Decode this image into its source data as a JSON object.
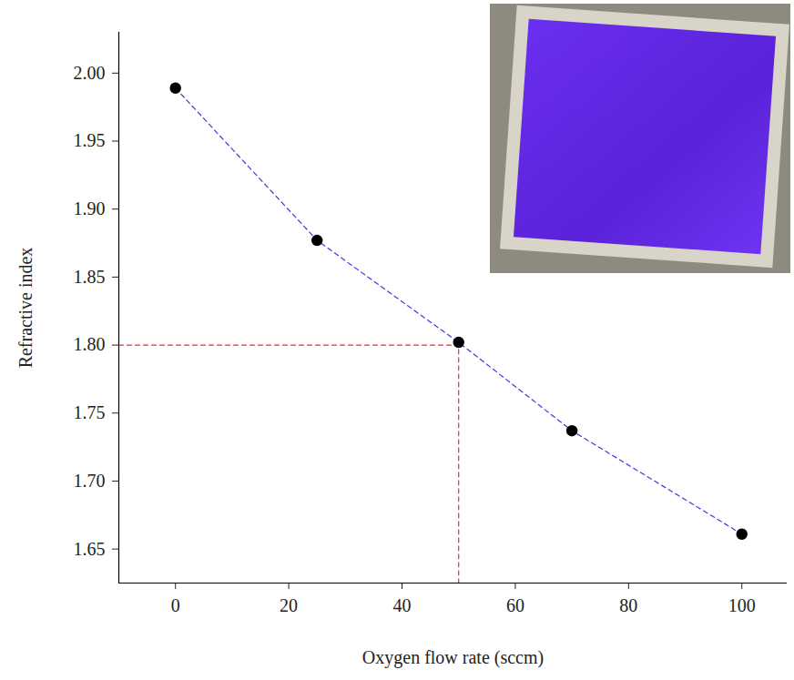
{
  "chart_data": {
    "type": "scatter",
    "xlabel": "Oxygen flow rate (sccm)",
    "ylabel": "Refractive index",
    "x": [
      0,
      25,
      50,
      70,
      100
    ],
    "values": [
      1.989,
      1.877,
      1.802,
      1.737,
      1.661
    ],
    "color": "#000000",
    "marker": "circle",
    "line_style": "dashed",
    "line_color": "#3a3ae0",
    "guide": {
      "x": 50,
      "y": 1.8,
      "color": "#e03030"
    },
    "xlim": [
      -10,
      108
    ],
    "xticks": [
      0,
      20,
      40,
      60,
      80,
      100
    ],
    "ylim": [
      1.625,
      2.03
    ],
    "yticks": [
      {
        "value": 1.65,
        "label": "1.65"
      },
      {
        "value": 1.7,
        "label": "1.70"
      },
      {
        "value": 1.75,
        "label": "1.75"
      },
      {
        "value": 1.8,
        "label": "1.80"
      },
      {
        "value": 1.85,
        "label": "1.85"
      },
      {
        "value": 1.9,
        "label": "1.90"
      },
      {
        "value": 1.95,
        "label": "1.95"
      },
      {
        "value": 2,
        "label": "2.00"
      }
    ],
    "grid": false
  }
}
